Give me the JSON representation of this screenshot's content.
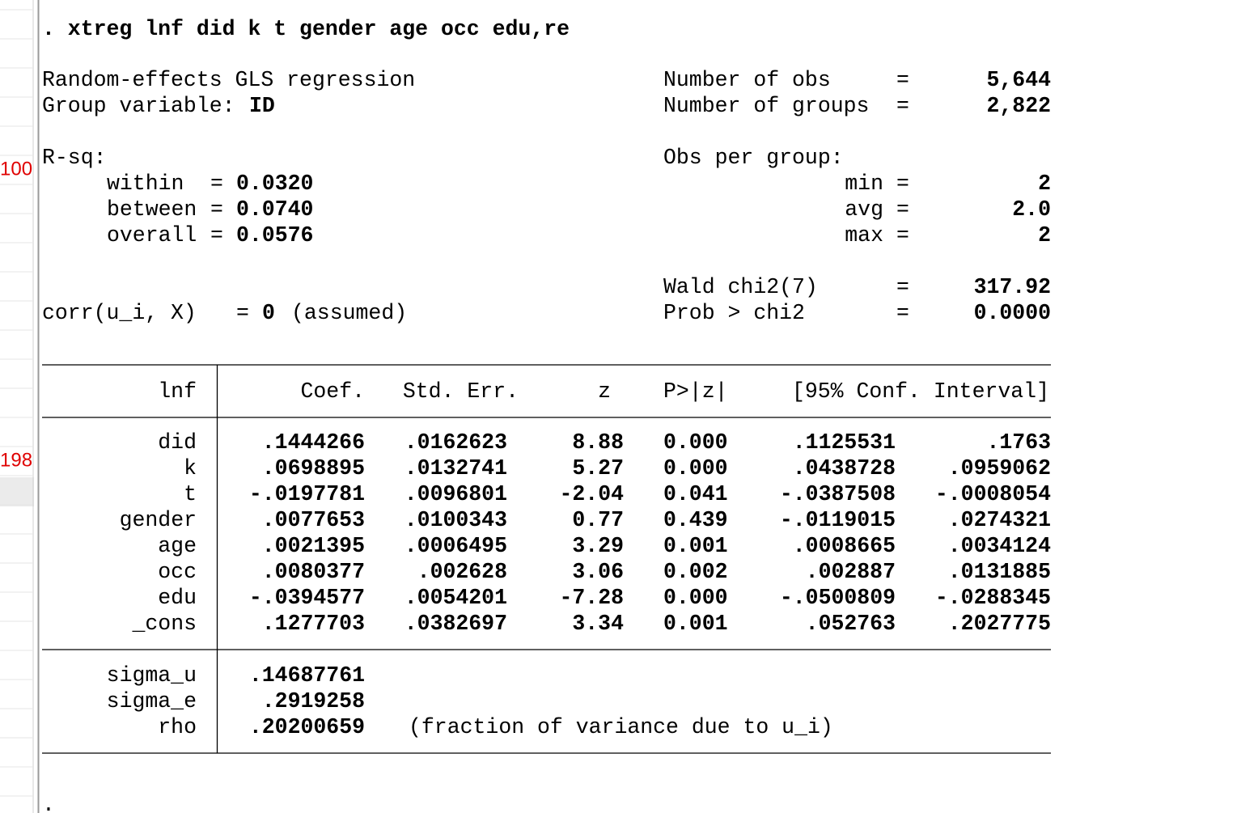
{
  "gutter": {
    "labels": [
      "100",
      "198"
    ]
  },
  "command": ". xtreg lnf did k t gender age occ edu,re",
  "header": {
    "eq": "=",
    "title": "Random-effects GLS regression",
    "group_label": "Group variable:",
    "group_value": "ID",
    "rsq_label": "R-sq:",
    "rsq": [
      {
        "label": "within",
        "value": "0.0320"
      },
      {
        "label": "between",
        "value": "0.0740"
      },
      {
        "label": "overall",
        "value": "0.0576"
      }
    ],
    "corr_label": "corr(u_i, X)",
    "corr_value": "0",
    "corr_note": "(assumed)",
    "stats": [
      {
        "label": "Number of obs",
        "value": "5,644"
      },
      {
        "label": "Number of groups",
        "value": "2,822"
      }
    ],
    "obs_per_group_label": "Obs per group:",
    "obs_per_group": [
      {
        "label": "min",
        "value": "2"
      },
      {
        "label": "avg",
        "value": "2.0"
      },
      {
        "label": "max",
        "value": "2"
      }
    ],
    "wald": [
      {
        "label": "Wald chi2(7)",
        "value": "317.92"
      },
      {
        "label": "Prob > chi2",
        "value": "0.0000"
      }
    ]
  },
  "table": {
    "columns": [
      "lnf",
      "Coef.",
      "Std. Err.",
      "z",
      "P>|z|",
      "[95% Conf. Interval]"
    ],
    "rows": [
      [
        "did",
        ".1444266",
        ".0162623",
        "8.88",
        "0.000",
        ".1125531",
        ".1763"
      ],
      [
        "k",
        ".0698895",
        ".0132741",
        "5.27",
        "0.000",
        ".0438728",
        ".0959062"
      ],
      [
        "t",
        "-.0197781",
        ".0096801",
        "-2.04",
        "0.041",
        "-.0387508",
        "-.0008054"
      ],
      [
        "gender",
        ".0077653",
        ".0100343",
        "0.77",
        "0.439",
        "-.0119015",
        ".0274321"
      ],
      [
        "age",
        ".0021395",
        ".0006495",
        "3.29",
        "0.001",
        ".0008665",
        ".0034124"
      ],
      [
        "occ",
        ".0080377",
        ".002628",
        "3.06",
        "0.002",
        ".002887",
        ".0131885"
      ],
      [
        "edu",
        "-.0394577",
        ".0054201",
        "-7.28",
        "0.000",
        "-.0500809",
        "-.0288345"
      ],
      [
        "_cons",
        ".1277703",
        ".0382697",
        "3.34",
        "0.001",
        ".052763",
        ".2027775"
      ]
    ],
    "aux_rows": [
      [
        "sigma_u",
        ".14687761"
      ],
      [
        "sigma_e",
        ".2919258"
      ],
      [
        "rho",
        ".20200659"
      ]
    ],
    "rho_note": "(fraction of variance due to u_i)"
  },
  "prompt": "."
}
